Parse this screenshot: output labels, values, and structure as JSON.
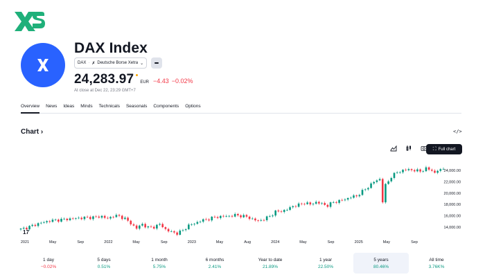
{
  "brand": {
    "icon": "xs-logo-icon",
    "color": "#1fb07a"
  },
  "instrument": {
    "title": "DAX Index",
    "symbol": "DAX",
    "exchange": "Deutsche Borse Xetra",
    "price": "24,283.97",
    "currency": "EUR",
    "change": "−4.43",
    "change_pct": "−0.02%",
    "close_note": "At close at Dec 22, 23:29 GMT+7"
  },
  "tabs": [
    {
      "label": "Overview",
      "active": true
    },
    {
      "label": "News"
    },
    {
      "label": "Ideas"
    },
    {
      "label": "Minds"
    },
    {
      "label": "Technicals"
    },
    {
      "label": "Seasonals"
    },
    {
      "label": "Components"
    },
    {
      "label": "Options"
    }
  ],
  "chart_section": {
    "title": "Chart",
    "full_chart_label": "Full chart"
  },
  "chart_data": {
    "type": "candlestick",
    "x_labels": [
      "2021",
      "May",
      "Sep",
      "2022",
      "May",
      "Sep",
      "2023",
      "May",
      "Aug",
      "2024",
      "May",
      "Sep",
      "2025",
      "May",
      "Sep"
    ],
    "y_ticks": [
      "24,000.00",
      "22,000.00",
      "20,000.00",
      "18,000.00",
      "16,000.00",
      "14,000.00"
    ],
    "ylim": [
      13000,
      25500
    ],
    "close_path": [
      [
        0,
        13600
      ],
      [
        3,
        14050
      ],
      [
        6,
        14600
      ],
      [
        10,
        15100
      ],
      [
        14,
        15300
      ],
      [
        18,
        15500
      ],
      [
        22,
        15650
      ],
      [
        26,
        15750
      ],
      [
        28,
        15900
      ],
      [
        30,
        15450
      ],
      [
        32,
        16000
      ],
      [
        34,
        15900
      ],
      [
        36,
        15500
      ],
      [
        38,
        14600
      ],
      [
        40,
        13800
      ],
      [
        42,
        14500
      ],
      [
        44,
        13900
      ],
      [
        46,
        14000
      ],
      [
        48,
        14500
      ],
      [
        50,
        13600
      ],
      [
        52,
        13100
      ],
      [
        54,
        12900
      ],
      [
        56,
        13400
      ],
      [
        58,
        14300
      ],
      [
        60,
        14600
      ],
      [
        62,
        15100
      ],
      [
        64,
        15300
      ],
      [
        66,
        15600
      ],
      [
        68,
        15800
      ],
      [
        70,
        15900
      ],
      [
        72,
        15950
      ],
      [
        74,
        16100
      ],
      [
        76,
        16000
      ],
      [
        78,
        15800
      ],
      [
        80,
        15400
      ],
      [
        82,
        15050
      ],
      [
        84,
        15400
      ],
      [
        86,
        15900
      ],
      [
        88,
        16700
      ],
      [
        90,
        16800
      ],
      [
        92,
        17100
      ],
      [
        94,
        17700
      ],
      [
        96,
        17900
      ],
      [
        98,
        18300
      ],
      [
        100,
        18000
      ],
      [
        102,
        18400
      ],
      [
        104,
        18100
      ],
      [
        106,
        17800
      ],
      [
        108,
        18400
      ],
      [
        110,
        18600
      ],
      [
        112,
        18900
      ],
      [
        114,
        19300
      ],
      [
        116,
        19500
      ],
      [
        118,
        20300
      ],
      [
        120,
        21100
      ],
      [
        122,
        22000
      ],
      [
        124,
        22500
      ],
      [
        125,
        18500
      ],
      [
        126,
        21400
      ],
      [
        128,
        22900
      ],
      [
        130,
        23700
      ],
      [
        132,
        24000
      ],
      [
        134,
        24200
      ],
      [
        136,
        24000
      ],
      [
        138,
        23900
      ],
      [
        140,
        24300
      ],
      [
        142,
        24100
      ],
      [
        143,
        23500
      ],
      [
        144,
        24000
      ],
      [
        146,
        24284
      ]
    ],
    "n": 147
  },
  "periods": [
    {
      "label": "1 day",
      "value": "−0.02%",
      "dir": "neg"
    },
    {
      "label": "5 days",
      "value": "0.51%",
      "dir": "pos"
    },
    {
      "label": "1 month",
      "value": "5.75%",
      "dir": "pos"
    },
    {
      "label": "6 months",
      "value": "2.41%",
      "dir": "pos"
    },
    {
      "label": "Year to date",
      "value": "21.89%",
      "dir": "pos"
    },
    {
      "label": "1 year",
      "value": "22.50%",
      "dir": "pos"
    },
    {
      "label": "5 years",
      "value": "80.46%",
      "dir": "pos",
      "active": true
    },
    {
      "label": "All time",
      "value": "3.76K%",
      "dir": "pos"
    }
  ],
  "colors": {
    "up": "#089981",
    "down": "#f23645",
    "accent": "#2962ff"
  }
}
